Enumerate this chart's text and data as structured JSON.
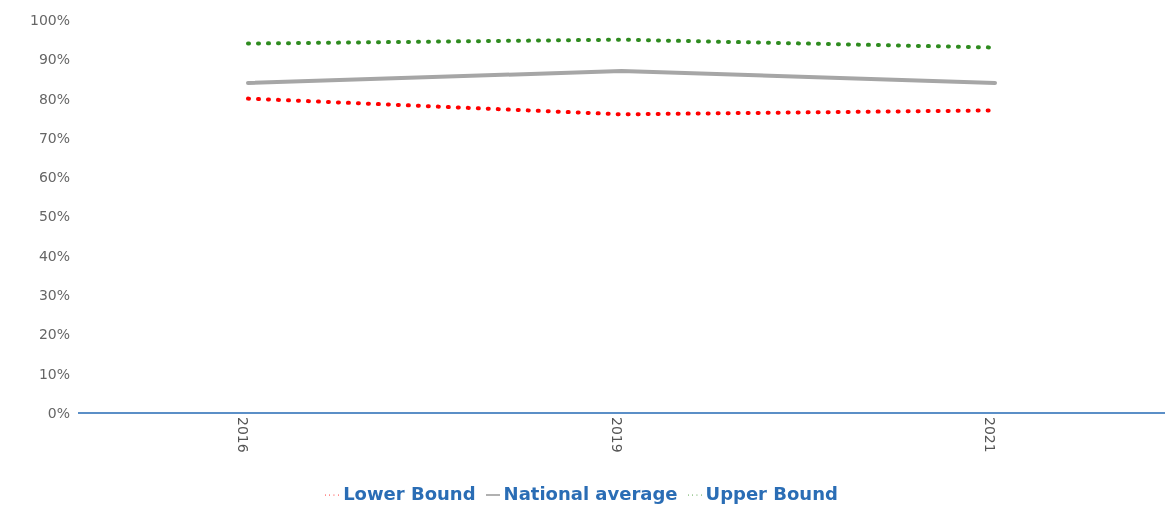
{
  "chart_data": {
    "type": "line",
    "categories": [
      "2016",
      "2019",
      "2021"
    ],
    "series": [
      {
        "name": "National average",
        "color": "#a6a6a6",
        "values": [
          84,
          87,
          84
        ],
        "line_style": "solid"
      },
      {
        "name": "Upper Bound",
        "color": "#2e8b1f",
        "values": [
          94,
          95,
          93
        ],
        "line_style": "dotted"
      },
      {
        "name": "Lower Bound",
        "color": "#ff0000",
        "values": [
          80,
          76,
          77
        ],
        "line_style": "dotted"
      }
    ],
    "ylim": [
      0,
      100
    ],
    "yticks": [
      {
        "value": 0,
        "label": "0%"
      },
      {
        "value": 10,
        "label": "10%"
      },
      {
        "value": 20,
        "label": "20%"
      },
      {
        "value": 30,
        "label": "30%"
      },
      {
        "value": 40,
        "label": "40%"
      },
      {
        "value": 50,
        "label": "50%"
      },
      {
        "value": 60,
        "label": "60%"
      },
      {
        "value": 70,
        "label": "70%"
      },
      {
        "value": 80,
        "label": "80%"
      },
      {
        "value": 90,
        "label": "90%"
      },
      {
        "value": 100,
        "label": "100%"
      }
    ],
    "grid": false,
    "legend": "bottom",
    "marker": "none"
  }
}
